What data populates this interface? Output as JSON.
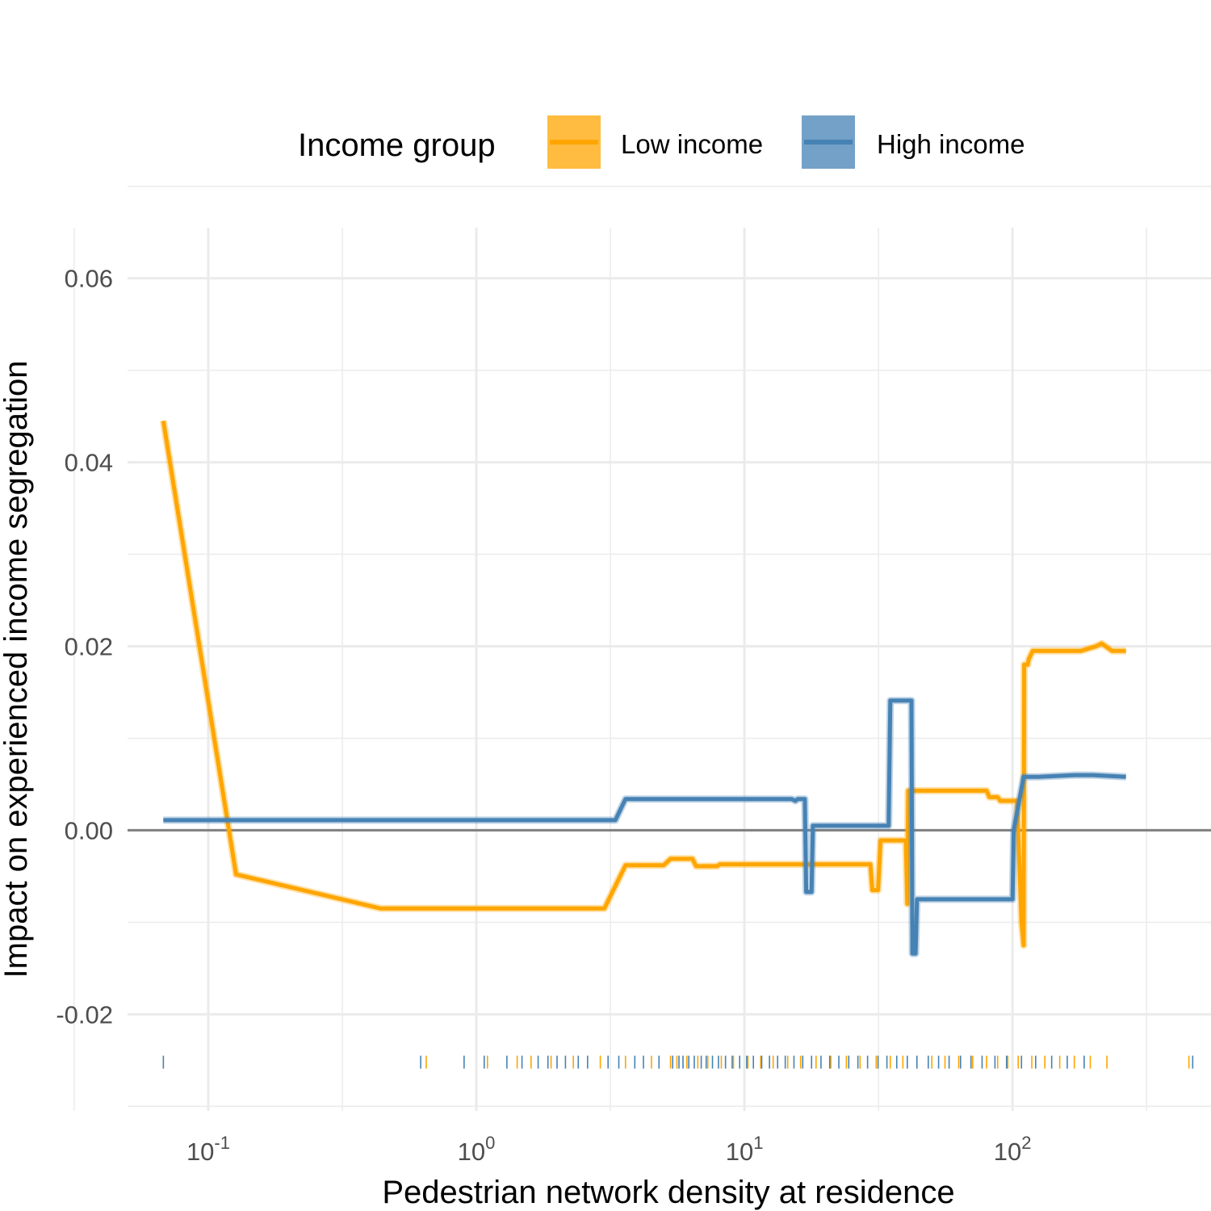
{
  "chart_data": {
    "type": "line",
    "title": "",
    "xlabel": "Pedestrian network density at residence",
    "ylabel": "Impact on experienced income segregation",
    "x_scale": "log10",
    "xlim": [
      0.05,
      550
    ],
    "ylim": [
      -0.0305,
      0.0655
    ],
    "x_tick_labels": [
      {
        "base": "10",
        "exp": "-1",
        "value": 0.1
      },
      {
        "base": "10",
        "exp": "0",
        "value": 1
      },
      {
        "base": "10",
        "exp": "1",
        "value": 10
      },
      {
        "base": "10",
        "exp": "2",
        "value": 100
      }
    ],
    "y_ticks": [
      -0.02,
      0.0,
      0.02,
      0.04,
      0.06
    ],
    "y_tick_labels": [
      "-0.02",
      "0.00",
      "0.02",
      "0.04",
      "0.06"
    ],
    "grid": true,
    "zero_line": 0.0,
    "legend": {
      "title": "Income group",
      "position": "top",
      "entries": [
        "Low income",
        "High income"
      ]
    },
    "series": [
      {
        "name": "Low income",
        "color": "#FFA500",
        "points": [
          [
            0.068,
            0.0445
          ],
          [
            0.127,
            -0.0048
          ],
          [
            0.44,
            -0.0085
          ],
          [
            3.0,
            -0.0085
          ],
          [
            3.6,
            -0.0038
          ],
          [
            5.0,
            -0.0038
          ],
          [
            5.3,
            -0.0031
          ],
          [
            6.4,
            -0.0031
          ],
          [
            6.6,
            -0.0039
          ],
          [
            7.9,
            -0.0039
          ],
          [
            8.1,
            -0.0037
          ],
          [
            29.5,
            -0.0037
          ],
          [
            30.0,
            -0.0065
          ],
          [
            31.5,
            -0.0065
          ],
          [
            32.2,
            -0.0011
          ],
          [
            40.0,
            -0.0011
          ],
          [
            40.5,
            -0.008
          ],
          [
            40.8,
            0.0043
          ],
          [
            80.0,
            0.0043
          ],
          [
            82.0,
            0.0036
          ],
          [
            88.0,
            0.0036
          ],
          [
            90.0,
            0.0032
          ],
          [
            104.0,
            0.0032
          ],
          [
            108.0,
            -0.01
          ],
          [
            110.0,
            -0.0125
          ],
          [
            110.5,
            0.018
          ],
          [
            114.0,
            0.018
          ],
          [
            115.0,
            0.0186
          ],
          [
            119.0,
            0.0195
          ],
          [
            180.0,
            0.0195
          ],
          [
            205.0,
            0.02
          ],
          [
            215.0,
            0.0203
          ],
          [
            235.0,
            0.0195
          ],
          [
            265.0,
            0.0195
          ]
        ]
      },
      {
        "name": "High income",
        "color": "#4682B4",
        "points": [
          [
            0.068,
            0.0011
          ],
          [
            3.3,
            0.0011
          ],
          [
            3.6,
            0.0034
          ],
          [
            15.0,
            0.0034
          ],
          [
            15.5,
            0.0032
          ],
          [
            15.8,
            0.0034
          ],
          [
            16.8,
            0.0034
          ],
          [
            17.0,
            -0.0067
          ],
          [
            17.8,
            -0.0067
          ],
          [
            18.0,
            0.0005
          ],
          [
            34.5,
            0.0005
          ],
          [
            35.0,
            0.0141
          ],
          [
            42.0,
            0.0141
          ],
          [
            42.3,
            -0.0134
          ],
          [
            43.5,
            -0.0134
          ],
          [
            44.0,
            -0.0075
          ],
          [
            100.0,
            -0.0075
          ],
          [
            101.0,
            0.0
          ],
          [
            110.0,
            0.0058
          ],
          [
            125.0,
            0.0058
          ],
          [
            170.0,
            0.006
          ],
          [
            200.0,
            0.006
          ],
          [
            265.0,
            0.0058
          ]
        ]
      }
    ],
    "rug": {
      "y": -0.0252,
      "low_income_x": [
        0.65,
        1.1,
        1.42,
        1.6,
        1.9,
        2.3,
        2.9,
        3.6,
        4.5,
        5.3,
        5.6,
        6.1,
        6.7,
        7.3,
        8.2,
        9.1,
        10.3,
        11.5,
        12.8,
        14.5,
        16.2,
        18.5,
        21.0,
        24.0,
        27.0,
        31.0,
        35.0,
        39.0,
        44.0,
        50.0,
        56.0,
        63.0,
        71.0,
        80.0,
        88.0,
        96.0,
        105.0,
        118.0,
        132.0,
        150.0,
        170.0,
        195.0,
        225.0,
        455.0
      ],
      "high_income_x": [
        0.068,
        0.62,
        0.9,
        1.07,
        1.3,
        1.48,
        1.7,
        1.85,
        2.0,
        2.15,
        2.4,
        2.6,
        3.1,
        3.4,
        3.9,
        4.2,
        4.8,
        5.4,
        5.7,
        5.9,
        6.2,
        6.5,
        6.9,
        7.2,
        7.6,
        8.0,
        8.5,
        9.0,
        9.6,
        10.2,
        10.8,
        11.6,
        12.4,
        13.3,
        14.2,
        15.3,
        16.5,
        17.8,
        19.3,
        20.8,
        22.5,
        24.5,
        26.5,
        28.8,
        31.5,
        34.0,
        37.0,
        40.5,
        44.0,
        48.5,
        53.0,
        58.0,
        64.0,
        70.0,
        77.0,
        86.0,
        95.0,
        108.0,
        122.0,
        140.0,
        160.0,
        185.0,
        470.0
      ]
    }
  }
}
